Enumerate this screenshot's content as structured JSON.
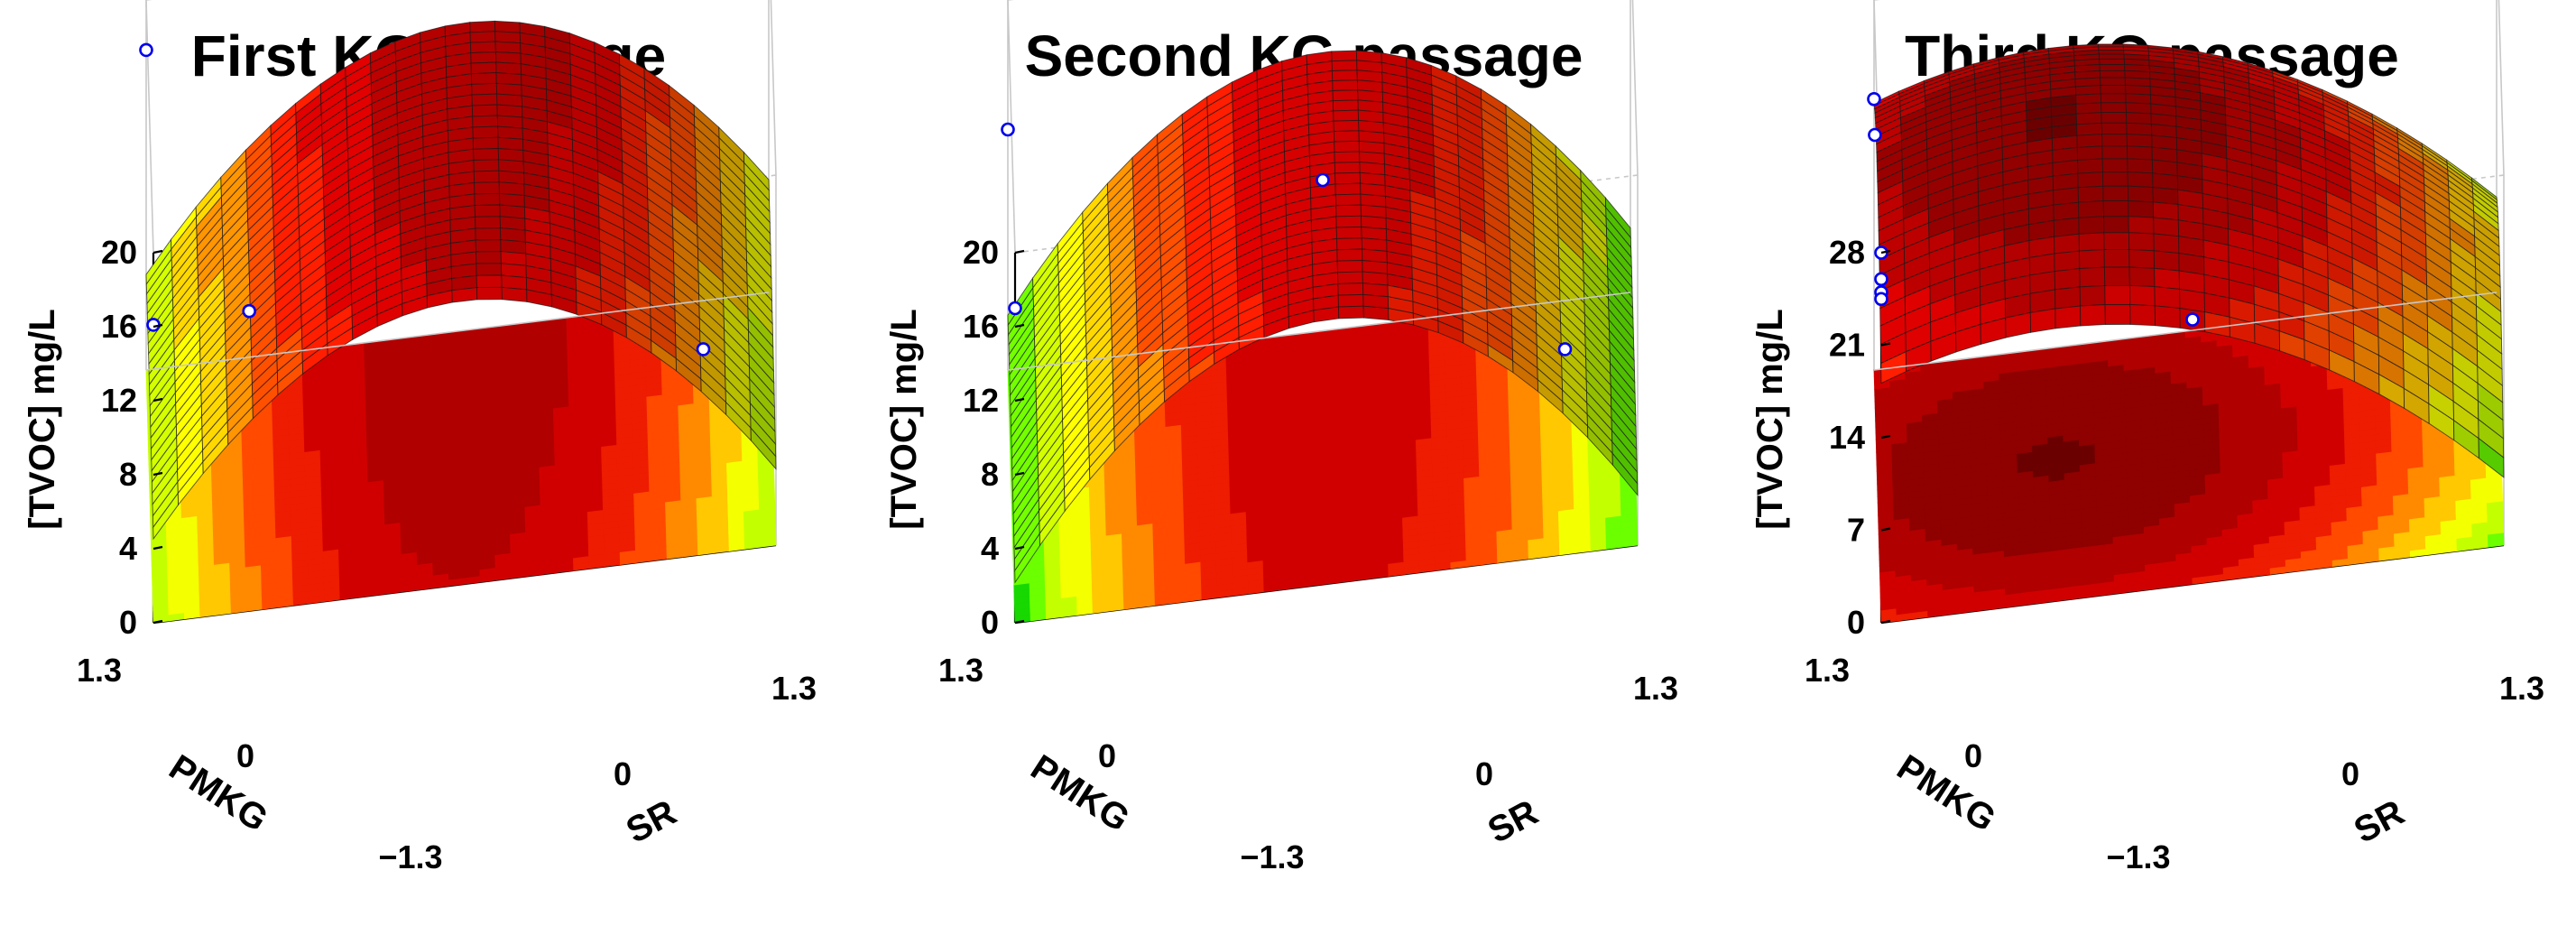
{
  "colors": {
    "scale": [
      "#6b0000",
      "#8f0000",
      "#b00000",
      "#d10000",
      "#ee1c00",
      "#ff4a00",
      "#ff8a00",
      "#ffc800",
      "#f4ff00",
      "#c4ff00",
      "#6bff00",
      "#17d800",
      "#00a000"
    ],
    "points": "#0000ee",
    "box": "#c8c8c8"
  },
  "chart_data": [
    {
      "type": "surface",
      "title": "First KG passage",
      "zlabel": "[TVOC] mg/L",
      "xlabel": "PMKG",
      "ylabel": "SR",
      "zlim": [
        0,
        20
      ],
      "zticks": [
        "0",
        "4",
        "8",
        "12",
        "16",
        "20"
      ],
      "xticks": [
        "1.3",
        "0",
        "−1.3"
      ],
      "yticks": [
        "0",
        "1.3"
      ],
      "surface": {
        "a": 16.3,
        "bx": 0.5,
        "by": 0.1,
        "cx": -0.2,
        "cy": -6.5,
        "dxy": 0.2
      },
      "points": [
        {
          "pmkg": 1.3,
          "sr": -1.3,
          "tvoc": 17.3
        },
        {
          "pmkg": -1.3,
          "sr": -1.3,
          "tvoc": 16.1
        },
        {
          "pmkg": -1.3,
          "sr": -0.9,
          "tvoc": 16.2
        },
        {
          "pmkg": -1.0,
          "sr": 1.0,
          "tvoc": 9.5
        }
      ]
    },
    {
      "type": "surface",
      "title": "Second KG passage",
      "zlabel": "[TVOC] mg/L",
      "xlabel": "PMKG",
      "ylabel": "SR",
      "zlim": [
        0,
        20
      ],
      "zticks": [
        "0",
        "4",
        "8",
        "12",
        "16",
        "20"
      ],
      "xticks": [
        "1.3",
        "0",
        "−1.3"
      ],
      "yticks": [
        "0",
        "1.3"
      ],
      "surface": {
        "a": 15.0,
        "bx": 0.3,
        "by": 0.2,
        "cx": -0.2,
        "cy": -7.0,
        "dxy": 0.0
      },
      "points": [
        {
          "pmkg": 1.3,
          "sr": -1.3,
          "tvoc": 13.0
        },
        {
          "pmkg": -1.3,
          "sr": -1.3,
          "tvoc": 17.0
        },
        {
          "pmkg": 0.0,
          "sr": 0.0,
          "tvoc": 15.0
        },
        {
          "pmkg": -1.0,
          "sr": 1.0,
          "tvoc": 9.5
        }
      ]
    },
    {
      "type": "surface",
      "title": "Third KG passage",
      "zlabel": "[TVOC] mg/L",
      "xlabel": "PMKG",
      "ylabel": "SR",
      "zlim": [
        0,
        28
      ],
      "zticks": [
        "0",
        "7",
        "14",
        "21",
        "28"
      ],
      "xticks": [
        "1.3",
        "0",
        "−1.3"
      ],
      "yticks": [
        "0",
        "1.3"
      ],
      "surface": {
        "a": 24.5,
        "bx": 0.8,
        "by": -5.0,
        "cx": -2.5,
        "cy": -4.5,
        "dxy": 0.0
      },
      "points": [
        {
          "pmkg": 1.3,
          "sr": -1.3,
          "tvoc": 20.5
        },
        {
          "pmkg": 1.0,
          "sr": -1.3,
          "tvoc": 20.0
        },
        {
          "pmkg": -1.3,
          "sr": -1.3,
          "tvoc": 28.0
        },
        {
          "pmkg": -1.3,
          "sr": -1.3,
          "tvoc": 26.0
        },
        {
          "pmkg": -1.3,
          "sr": -1.3,
          "tvoc": 25.0
        },
        {
          "pmkg": -1.3,
          "sr": -1.3,
          "tvoc": 24.5
        },
        {
          "pmkg": -1.3,
          "sr": 0.0,
          "tvoc": 20.0
        }
      ]
    }
  ]
}
